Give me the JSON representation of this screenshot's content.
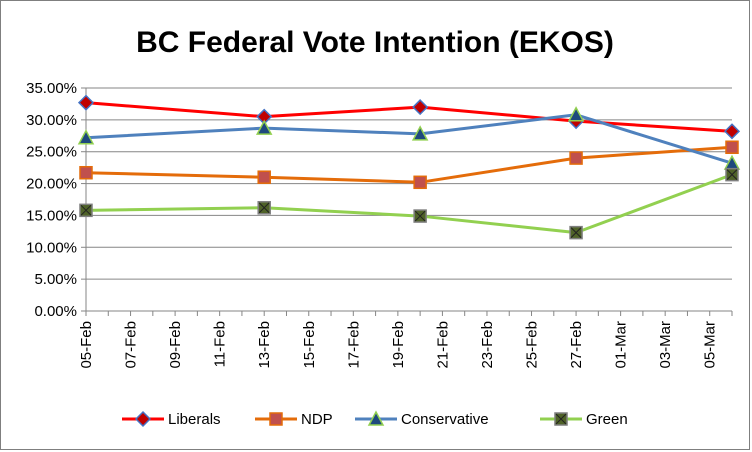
{
  "chart_data": {
    "type": "line",
    "title": "BC Federal Vote Intention (EKOS)",
    "xlabel": "",
    "ylabel": "",
    "ylim": [
      0,
      0.35
    ],
    "y_ticks": [
      "0.00%",
      "5.00%",
      "10.00%",
      "15.00%",
      "20.00%",
      "25.00%",
      "30.00%",
      "35.00%"
    ],
    "y_tick_values": [
      0,
      0.05,
      0.1,
      0.15,
      0.2,
      0.25,
      0.3,
      0.35
    ],
    "x_ticks": [
      "05-Feb",
      "07-Feb",
      "09-Feb",
      "11-Feb",
      "13-Feb",
      "15-Feb",
      "17-Feb",
      "19-Feb",
      "21-Feb",
      "23-Feb",
      "25-Feb",
      "27-Feb",
      "01-Mar",
      "03-Mar",
      "05-Mar"
    ],
    "x_range_days": [
      0,
      29
    ],
    "grid": true,
    "legend_position": "bottom",
    "series": [
      {
        "name": "Liberals",
        "color": "#ff0000",
        "marker": "diamond",
        "marker_fill": "#c00000",
        "marker_stroke": "#4472c4",
        "points": [
          {
            "x": "05-Feb",
            "y": 0.327
          },
          {
            "x": "13-Feb",
            "y": 0.305
          },
          {
            "x": "20-Feb",
            "y": 0.32
          },
          {
            "x": "27-Feb",
            "y": 0.298
          },
          {
            "x": "06-Mar",
            "y": 0.282
          }
        ]
      },
      {
        "name": "NDP",
        "color": "#e46c0a",
        "marker": "square",
        "marker_fill": "#c0504d",
        "marker_stroke": "#e46c0a",
        "points": [
          {
            "x": "05-Feb",
            "y": 0.217
          },
          {
            "x": "13-Feb",
            "y": 0.21
          },
          {
            "x": "20-Feb",
            "y": 0.202
          },
          {
            "x": "27-Feb",
            "y": 0.24
          },
          {
            "x": "06-Mar",
            "y": 0.257
          }
        ]
      },
      {
        "name": "Conservative",
        "color": "#4f81bd",
        "marker": "triangle",
        "marker_fill": "#1f497d",
        "marker_stroke": "#92d050",
        "points": [
          {
            "x": "05-Feb",
            "y": 0.272
          },
          {
            "x": "13-Feb",
            "y": 0.287
          },
          {
            "x": "20-Feb",
            "y": 0.278
          },
          {
            "x": "27-Feb",
            "y": 0.308
          },
          {
            "x": "06-Mar",
            "y": 0.232
          }
        ]
      },
      {
        "name": "Green",
        "color": "#92d050",
        "marker": "square-x",
        "marker_fill": "#4f6228",
        "marker_stroke": "#7f7f7f",
        "points": [
          {
            "x": "05-Feb",
            "y": 0.158
          },
          {
            "x": "13-Feb",
            "y": 0.162
          },
          {
            "x": "20-Feb",
            "y": 0.149
          },
          {
            "x": "27-Feb",
            "y": 0.123
          },
          {
            "x": "06-Mar",
            "y": 0.214
          }
        ]
      }
    ]
  }
}
